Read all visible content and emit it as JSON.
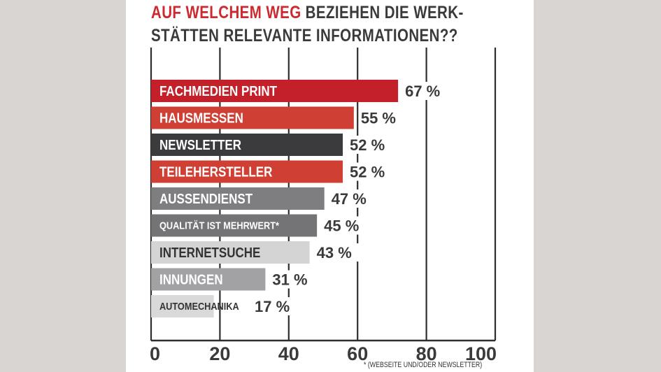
{
  "chart_data": {
    "type": "bar",
    "orientation": "horizontal",
    "title_part1": "AUF WELCHEM WEG",
    "title_part2": " BEZIEHEN DIE WERK-",
    "title_line2": "STÄTTEN RELEVANTE INFORMATIONEN??",
    "categories": [
      "FACHMEDIEN PRINT",
      "HAUSMESSEN",
      "NEWSLETTER",
      "TEILEHERSTELLER",
      "AUSSENDIENST",
      "QUALITÄT IST MEHRWERT*",
      "INTERNETSUCHE",
      "INNUNGEN",
      "AUTOMECHANIKA"
    ],
    "values": [
      67,
      55,
      52,
      52,
      47,
      45,
      43,
      31,
      17
    ],
    "value_labels": [
      "67 %",
      "55 %",
      "52 %",
      "52 %",
      "47 %",
      "45 %",
      "43 %",
      "31 %",
      "17 %"
    ],
    "bar_colors": [
      "#c4202a",
      "#cf3f33",
      "#3b3a3c",
      "#cf3f33",
      "#7e7d80",
      "#747376",
      "#d4d4d4",
      "#a2a1a3",
      "#d9d9d9"
    ],
    "label_colors": [
      "#ffffff",
      "#ffffff",
      "#ffffff",
      "#ffffff",
      "#ffffff",
      "#ffffff",
      "#333333",
      "#ffffff",
      "#333333"
    ],
    "xlim": [
      0,
      100
    ],
    "x_ticks": [
      "0",
      "20",
      "40",
      "60",
      "80",
      "100"
    ],
    "grid": true,
    "footnote": "* (WEBSEITE UND/ODER NEWSLETTER)"
  }
}
